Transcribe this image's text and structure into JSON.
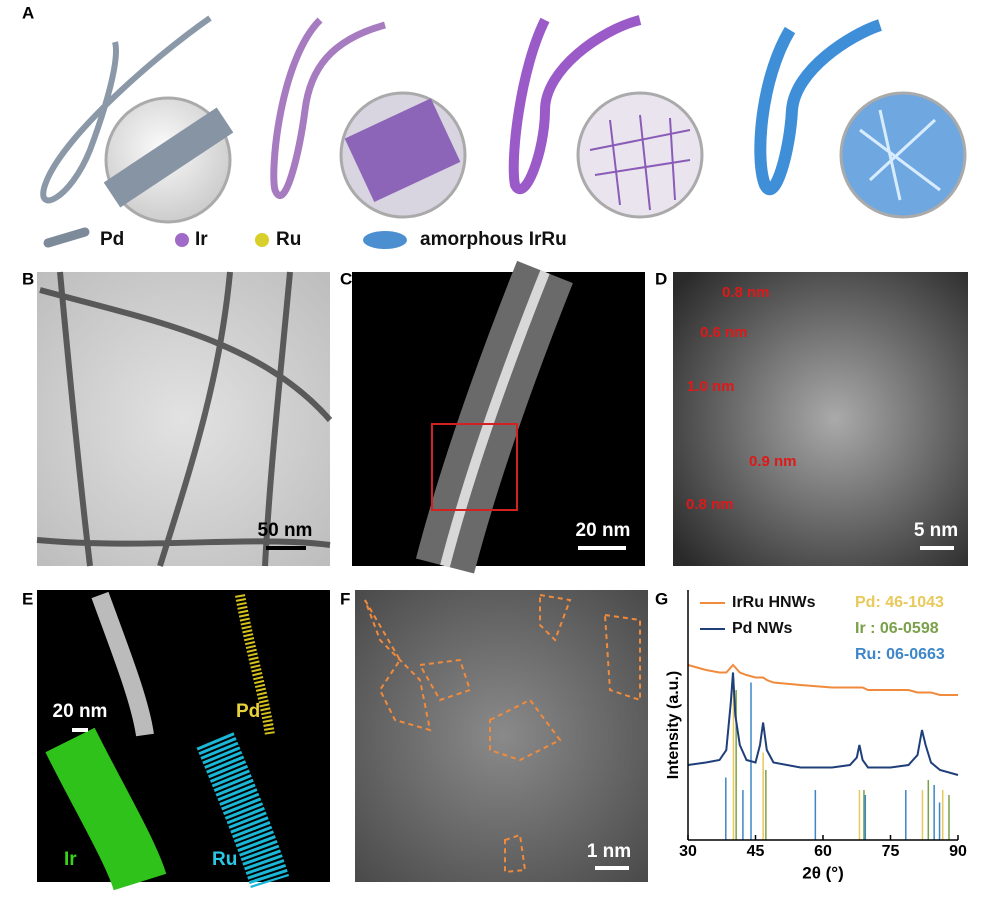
{
  "panels": {
    "A": {
      "label": "A",
      "legend": [
        "Pd",
        "Ir",
        "Ru",
        "amorphous IrRu"
      ]
    },
    "B": {
      "label": "B",
      "scale_bar": "50 nm"
    },
    "C": {
      "label": "C",
      "scale_bar": "20 nm"
    },
    "D": {
      "label": "D",
      "scale_bar": "5 nm",
      "spacings": [
        "0.8 nm",
        "0.6 nm",
        "1.0 nm",
        "0.9 nm",
        "0.8 nm"
      ]
    },
    "E": {
      "label": "E",
      "scale_bar": "20 nm",
      "maps": [
        "Pd",
        "Ir",
        "Ru"
      ]
    },
    "F": {
      "label": "F",
      "scale_bar": "1 nm"
    }
  },
  "chart_data": {
    "type": "line",
    "label": "G",
    "xlabel": "2θ (°)",
    "ylabel": "Intensity (a.u.)",
    "xlim": [
      30,
      90
    ],
    "xticks": [
      30,
      45,
      60,
      75,
      90
    ],
    "ylim": [
      0,
      100
    ],
    "x": [
      30,
      34,
      37,
      38.5,
      39.5,
      40,
      40.5,
      41.5,
      43,
      45,
      46,
      46.7,
      47.5,
      49,
      55,
      62,
      66,
      67.5,
      68.1,
      68.8,
      70,
      75,
      79,
      81,
      82,
      82.8,
      84,
      86,
      90
    ],
    "series": [
      {
        "name": "IrRu HNWs",
        "color": "#f08a3c",
        "values": [
          70,
          68,
          67,
          67,
          69,
          70,
          69,
          67,
          66,
          65,
          65,
          65,
          64,
          63,
          62,
          61,
          61,
          61,
          61,
          61,
          60,
          60,
          60,
          59,
          59,
          59,
          59,
          58,
          58
        ]
      },
      {
        "name": "Pd NWs",
        "color": "#1f3f7a",
        "values": [
          30,
          31,
          32,
          36,
          55,
          67,
          50,
          38,
          32,
          31,
          38,
          47,
          36,
          31,
          29,
          29,
          30,
          33,
          38,
          32,
          29,
          29,
          30,
          34,
          44,
          38,
          31,
          28,
          26
        ]
      }
    ],
    "reference_patterns": [
      {
        "name": "Pd: 46-1043",
        "color": "#e8c95a",
        "positions": [
          40.1,
          46.7,
          68.1,
          82.1,
          86.6
        ],
        "heights": [
          65,
          35,
          20,
          20,
          20
        ]
      },
      {
        "name": "Ir  : 06-0598",
        "color": "#7aa04a",
        "positions": [
          40.7,
          47.3,
          69.1,
          83.4,
          88.0
        ],
        "heights": [
          60,
          28,
          20,
          24,
          18
        ]
      },
      {
        "name": "Ru: 06-0663",
        "color": "#3d86c8",
        "positions": [
          38.4,
          42.2,
          44.0,
          58.3,
          69.4,
          78.4,
          84.7,
          85.9
        ],
        "heights": [
          25,
          20,
          63,
          20,
          18,
          20,
          22,
          15
        ]
      }
    ]
  }
}
